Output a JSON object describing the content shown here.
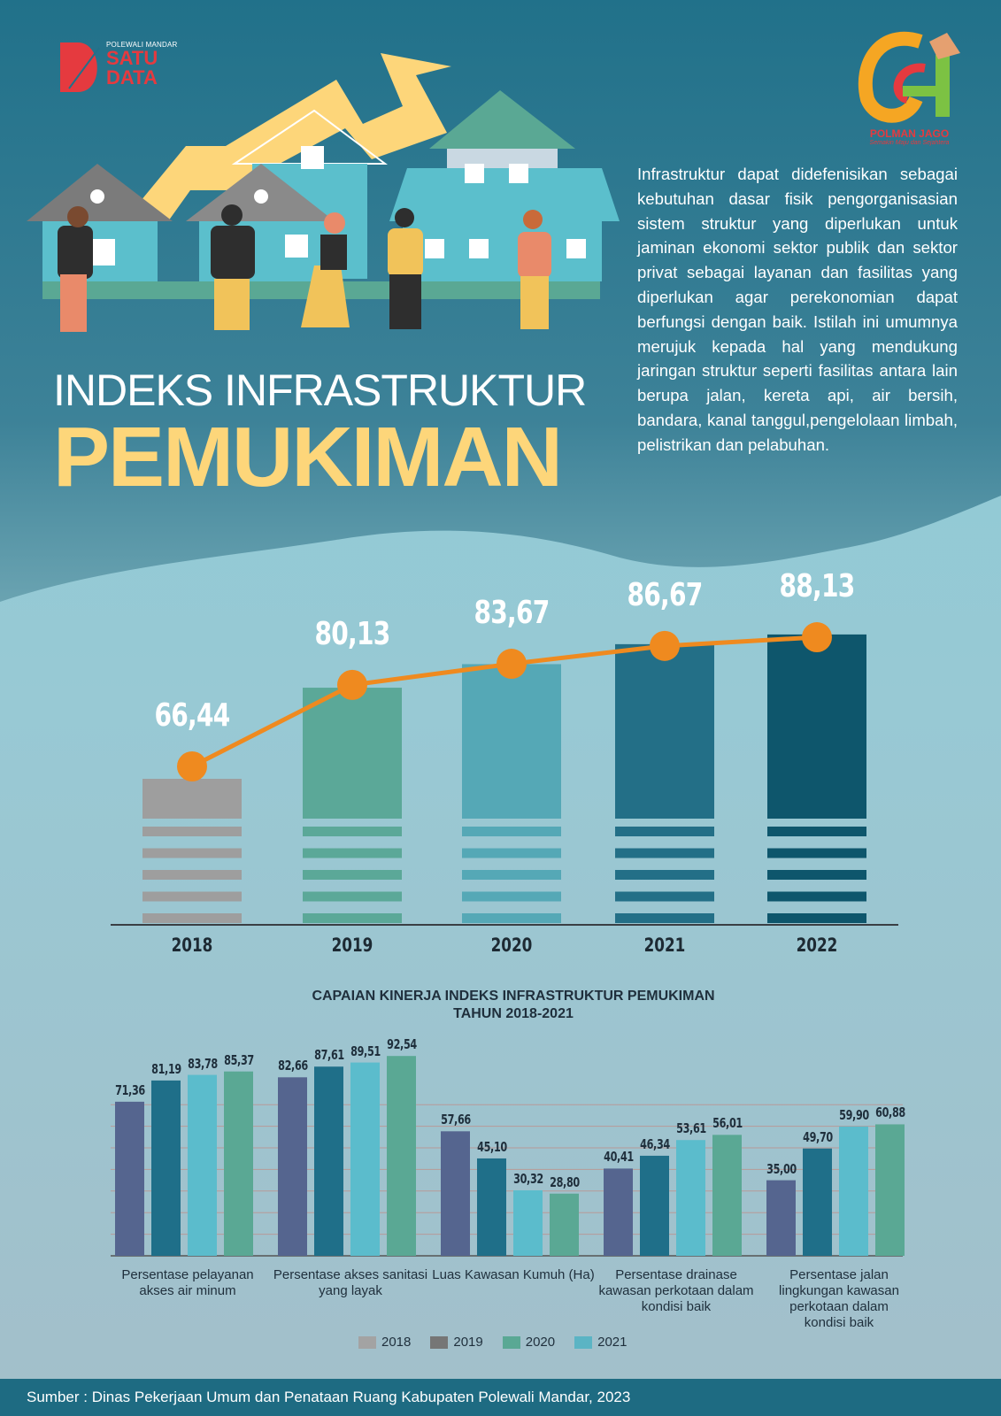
{
  "header": {
    "logo_left": {
      "top": "POLEWALI MANDAR",
      "line1": "SATU",
      "line2": "DATA"
    },
    "logo_right": {
      "name": "POLMAN JAGO",
      "tagline": "Semakin Maju dan Sejahtera"
    },
    "title_line1": "INDEKS INFRASTRUKTUR",
    "title_line2": "PEMUKIMAN",
    "description": "Infrastruktur dapat didefenisikan sebagai kebutuhan dasar fisik pengorganisasian sistem struktur yang diperlukan untuk jaminan ekonomi sektor publik dan sektor privat sebagai layanan dan fasilitas yang diperlukan agar perekonomian dapat berfungsi dengan baik. Istilah ini umumnya merujuk kepada hal yang mendukung jaringan struktur seperti fasilitas antara lain berupa jalan, kereta api, air bersih, bandara, kanal tanggul,pengelolaan limbah, pelistrikan dan pelabuhan."
  },
  "chart_data": [
    {
      "type": "bar",
      "title": "Indeks Infrastruktur Pemukiman",
      "categories": [
        "2018",
        "2019",
        "2020",
        "2021",
        "2022"
      ],
      "values": [
        66.44,
        80.13,
        83.67,
        86.67,
        88.13
      ],
      "labels": [
        "66,44",
        "80,13",
        "83,67",
        "86,67",
        "88,13"
      ],
      "colors": [
        "#9e9e9e",
        "#5ba898",
        "#55a8b6",
        "#236f87",
        "#0e566c"
      ],
      "line_overlay": true,
      "line_color": "#ef8a1f",
      "xlabel": "",
      "ylabel": ""
    },
    {
      "type": "bar",
      "title": "CAPAIAN KINERJA INDEKS INFRASTRUKTUR PEMUKIMAN",
      "subtitle": "TAHUN 2018-2021",
      "categories": [
        "Persentase pelayanan akses air minum",
        "Persentase akses sanitasi yang layak",
        "Luas Kawasan Kumuh (Ha)",
        "Persentase drainase kawasan perkotaan dalam kondisi baik",
        "Persentase jalan lingkungan kawasan perkotaan dalam kondisi baik"
      ],
      "series": [
        {
          "name": "2018",
          "values": [
            71.36,
            82.66,
            57.66,
            40.41,
            35.0
          ],
          "labels": [
            "71,36",
            "82,66",
            "57,66",
            "40,41",
            "35,00"
          ],
          "color": "#55658f"
        },
        {
          "name": "2019",
          "values": [
            81.19,
            87.61,
            45.1,
            46.34,
            49.7
          ],
          "labels": [
            "81,19",
            "87,61",
            "45,10",
            "46,34",
            "49,70"
          ],
          "color": "#1f6f89"
        },
        {
          "name": "2020",
          "values": [
            83.78,
            89.51,
            30.32,
            53.61,
            59.9
          ],
          "labels": [
            "83,78",
            "89,51",
            "30,32",
            "53,61",
            "59,90"
          ],
          "color": "#5bbccc"
        },
        {
          "name": "2021",
          "values": [
            85.37,
            92.54,
            28.8,
            56.01,
            60.88
          ],
          "labels": [
            "85,37",
            "92,54",
            "28,80",
            "56,01",
            "60,88"
          ],
          "color": "#5aa894"
        }
      ],
      "legend": [
        {
          "label": "2018",
          "color": "#a3a3a3"
        },
        {
          "label": "2019",
          "color": "#767676"
        },
        {
          "label": "2020",
          "color": "#5aa894"
        },
        {
          "label": "2021",
          "color": "#5bb4c4"
        }
      ],
      "legend_position": "bottom",
      "grid": true,
      "ylim": [
        0,
        100
      ]
    }
  ],
  "footer": {
    "source": "Sumber : Dinas Pekerjaan Umum dan Penataan Ruang Kabupaten Polewali Mandar, 2023"
  }
}
